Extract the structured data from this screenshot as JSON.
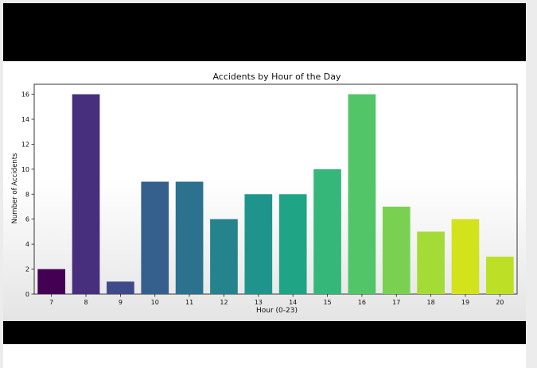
{
  "chart_data": {
    "type": "bar",
    "title": "Accidents by Hour of the Day",
    "xlabel": "Hour (0-23)",
    "ylabel": "Number of Accidents",
    "categories": [
      "7",
      "8",
      "9",
      "10",
      "11",
      "12",
      "13",
      "14",
      "15",
      "16",
      "17",
      "18",
      "19",
      "20"
    ],
    "values": [
      2,
      16,
      1,
      9,
      9,
      6,
      8,
      8,
      10,
      16,
      7,
      5,
      6,
      3
    ],
    "ylim": [
      0,
      16.8
    ],
    "yticks": [
      0,
      2,
      4,
      6,
      8,
      10,
      12,
      14,
      16
    ],
    "grid": false,
    "colors": [
      "#440154",
      "#472f7d",
      "#3e4a89",
      "#355f8d",
      "#2c718e",
      "#25838e",
      "#1f948c",
      "#20a486",
      "#35b779",
      "#52c569",
      "#7ad151",
      "#a5db36",
      "#d2e21b",
      "#bddf26"
    ]
  }
}
